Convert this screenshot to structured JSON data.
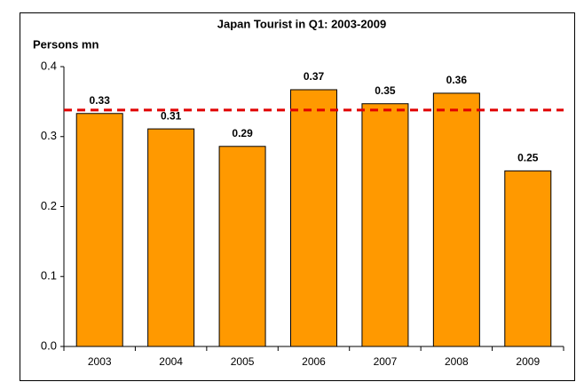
{
  "chart_data": {
    "type": "bar",
    "title": "Japan Tourist in Q1: 2003-2009",
    "y_label": "Persons mn",
    "categories": [
      "2003",
      "2004",
      "2005",
      "2006",
      "2007",
      "2008",
      "2009"
    ],
    "values": [
      0.333,
      0.311,
      0.286,
      0.367,
      0.347,
      0.362,
      0.251
    ],
    "value_labels": [
      "0.33",
      "0.31",
      "0.29",
      "0.37",
      "0.35",
      "0.36",
      "0.25"
    ],
    "color": "#ff9900",
    "ylim": [
      0,
      0.4
    ],
    "yticks": [
      {
        "value": 0,
        "label": "0.0"
      },
      0.1,
      0.2,
      0.3,
      0.4
    ],
    "grid": false,
    "reference_line": {
      "value": 0.338,
      "color": "#e00000"
    }
  }
}
